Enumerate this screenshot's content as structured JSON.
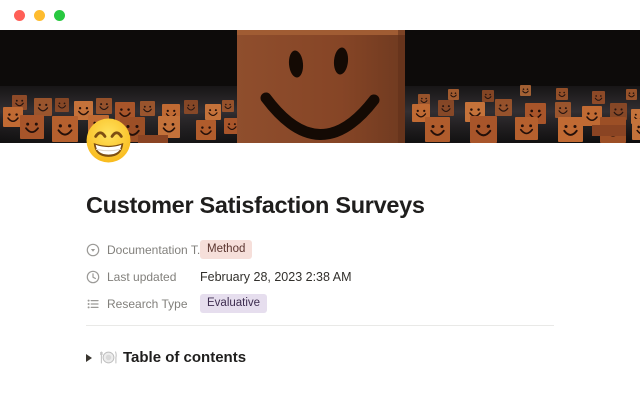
{
  "window": {
    "traffic_lights": [
      {
        "name": "close",
        "color": "#ff5f57"
      },
      {
        "name": "minimize",
        "color": "#febc2e"
      },
      {
        "name": "zoom",
        "color": "#28c840"
      }
    ]
  },
  "cover": {
    "description": "dark 3d render of orange smiley-face cubes crowd with one large smiling cube in center",
    "background_color": "#0d0b0a",
    "floor_color": "#4e4a4e",
    "big_cube_color": "#8a4a2b",
    "small_cube_color": "#b5602e",
    "face_line_color": "#1c0d04"
  },
  "page": {
    "icon_emoji": "😁",
    "title": "Customer Satisfaction Surveys",
    "properties": [
      {
        "icon": "select-icon",
        "label": "Documentation T...",
        "value": "Method",
        "value_type": "tag",
        "tag_bg": "#f6dfda",
        "tag_color": "#5a342e"
      },
      {
        "icon": "clock-icon",
        "label": "Last updated",
        "value": "February 28, 2023 2:38 AM",
        "value_type": "text"
      },
      {
        "icon": "multiselect-icon",
        "label": "Research Type",
        "value": "Evaluative",
        "value_type": "tag",
        "tag_bg": "#e6deee",
        "tag_color": "#3d2c4f"
      }
    ],
    "toggle": {
      "emoji": "🍽️",
      "label": "Table of contents"
    }
  }
}
